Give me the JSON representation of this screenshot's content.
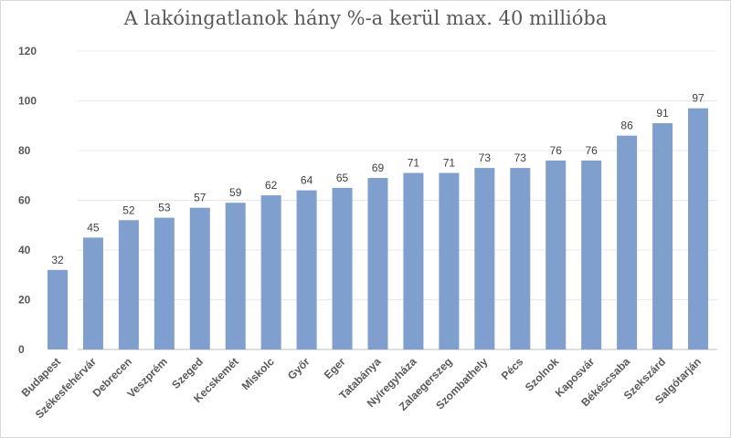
{
  "chart_data": {
    "type": "bar",
    "title": "A lakóingatlanok hány %-a kerül max. 40 millióba",
    "categories": [
      "Budapest",
      "Székesfehérvár",
      "Debrecen",
      "Veszprém",
      "Szeged",
      "Kecskemét",
      "Miskolc",
      "Győr",
      "Eger",
      "Tatabánya",
      "Nyíregyháza",
      "Zalaegerszeg",
      "Szombathely",
      "Pécs",
      "Szolnok",
      "Kaposvár",
      "Békéscsaba",
      "Szekszárd",
      "Salgótarján"
    ],
    "values": [
      32,
      45,
      52,
      53,
      57,
      59,
      62,
      64,
      65,
      69,
      71,
      71,
      73,
      73,
      76,
      76,
      86,
      91,
      97
    ],
    "ylim": [
      0,
      120
    ],
    "yticks": [
      0,
      20,
      40,
      60,
      80,
      100,
      120
    ],
    "grid": true,
    "data_labels": true,
    "legend": "none",
    "bar_color": "#7f9fcf"
  }
}
